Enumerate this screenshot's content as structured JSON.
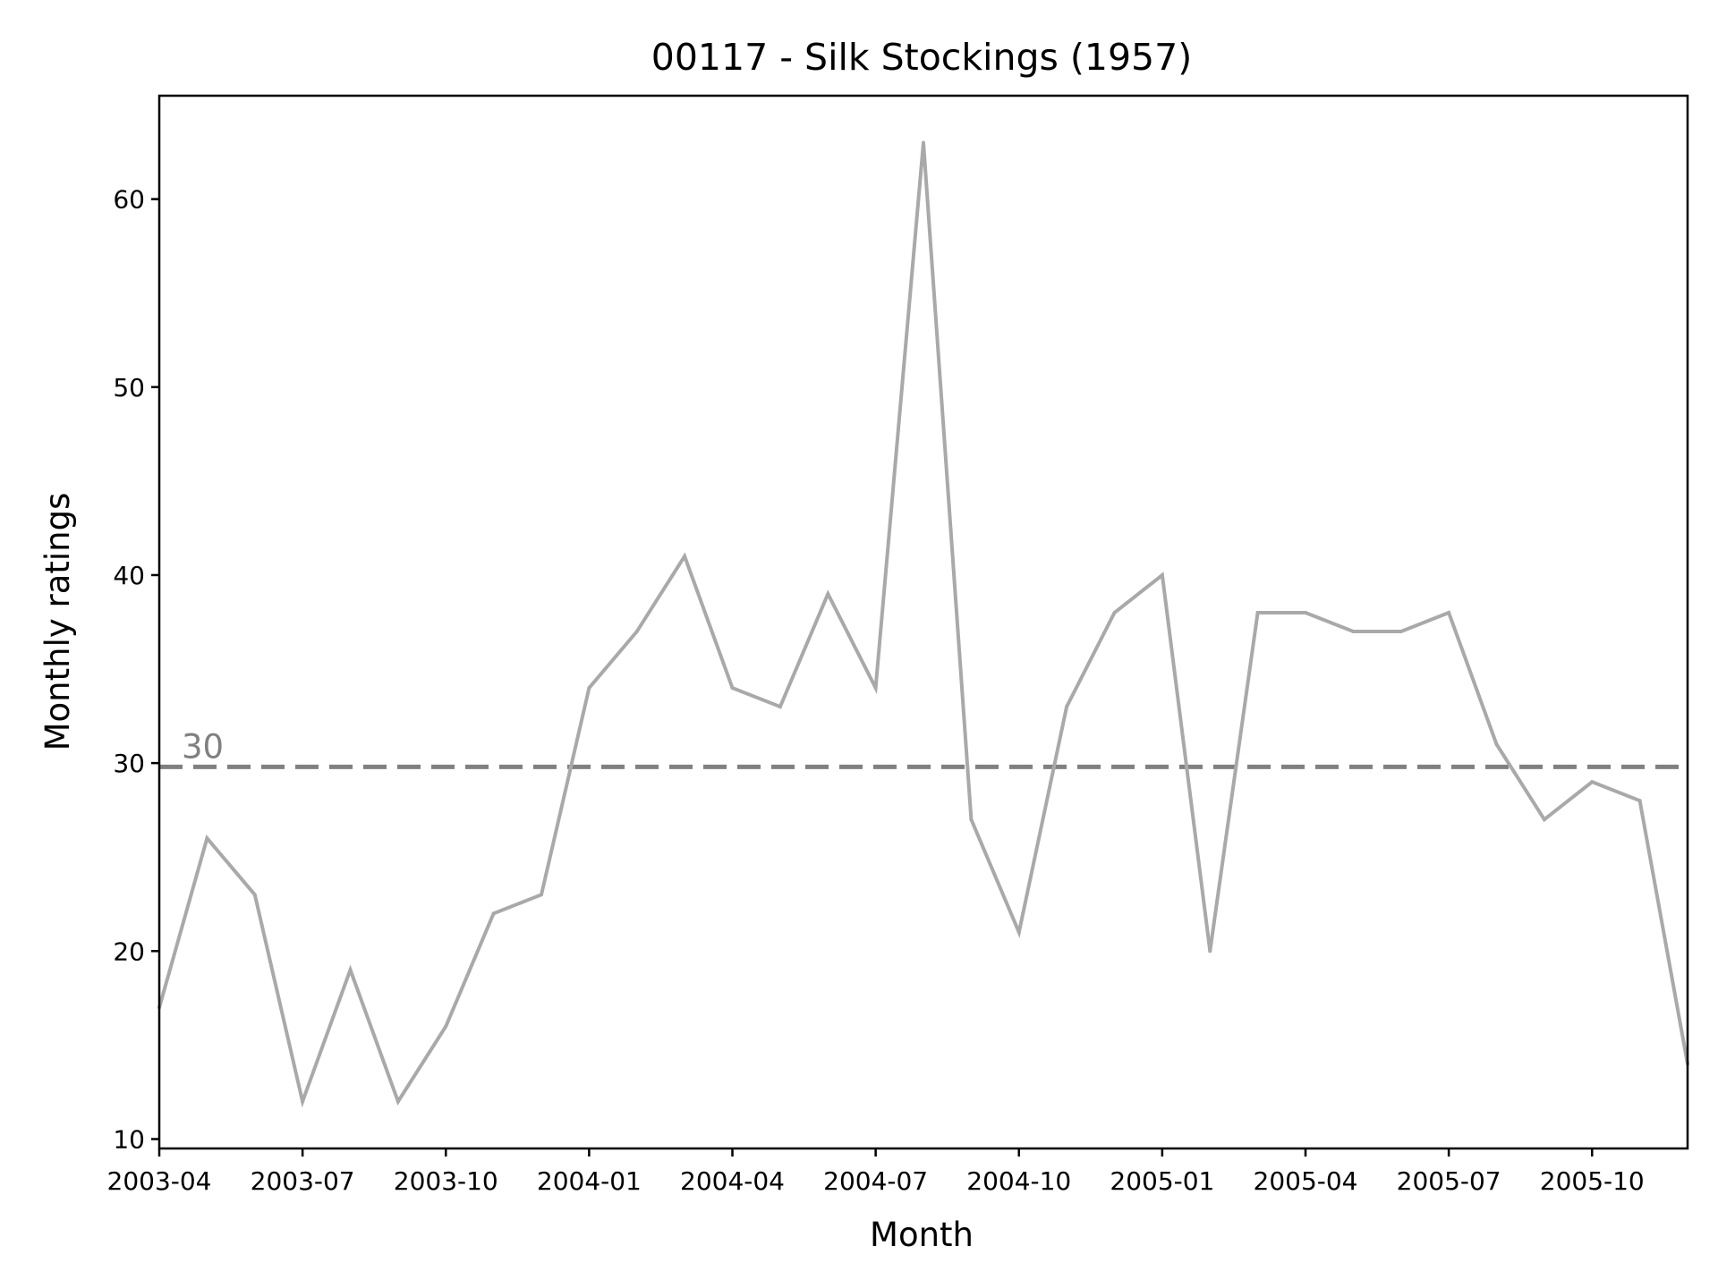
{
  "chart_data": {
    "type": "line",
    "title": "00117 - Silk Stockings (1957)",
    "xlabel": "Month",
    "ylabel": "Monthly ratings",
    "ylim": [
      9.5,
      65.5
    ],
    "xlim": [
      "2003-04",
      "2005-12"
    ],
    "yticks": [
      10,
      20,
      30,
      40,
      50,
      60
    ],
    "xticks": [
      "2003-04",
      "2003-07",
      "2003-10",
      "2004-01",
      "2004-04",
      "2004-07",
      "2004-10",
      "2005-01",
      "2005-04",
      "2005-07",
      "2005-10"
    ],
    "grid": false,
    "series": [
      {
        "color": "#a9a9a9",
        "x": [
          "2003-04",
          "2003-05",
          "2003-06",
          "2003-07",
          "2003-08",
          "2003-09",
          "2003-10",
          "2003-11",
          "2003-12",
          "2004-01",
          "2004-02",
          "2004-03",
          "2004-04",
          "2004-05",
          "2004-06",
          "2004-07",
          "2004-08",
          "2004-09",
          "2004-10",
          "2004-11",
          "2004-12",
          "2005-01",
          "2005-02",
          "2005-03",
          "2005-04",
          "2005-05",
          "2005-06",
          "2005-07",
          "2005-08",
          "2005-09",
          "2005-10",
          "2005-11",
          "2005-12"
        ],
        "values": [
          17,
          26,
          23,
          12,
          19,
          12,
          16,
          22,
          23,
          34,
          37,
          41,
          34,
          33,
          39,
          34,
          63,
          27,
          21,
          33,
          38,
          40,
          20,
          38,
          38,
          37,
          37,
          38,
          31,
          27,
          29,
          28,
          14
        ]
      }
    ],
    "reference_line": {
      "value": 29.8,
      "label": "30",
      "color": "#808080",
      "style": "dashed"
    }
  }
}
